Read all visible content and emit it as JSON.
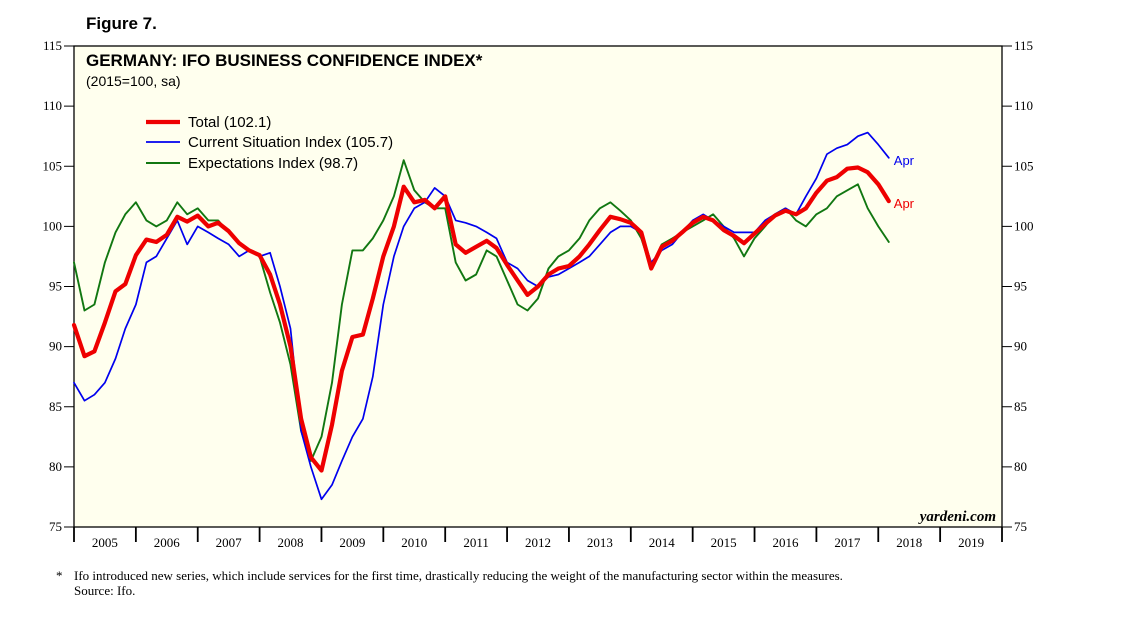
{
  "figure_label": "Figure 7.",
  "footnote": "Ifo introduced new series, which include services for the first time, drastically reducing the weight of the manufacturing sector within the measures.",
  "source": "Source: Ifo.",
  "colors": {
    "plot_bg": "#ffffee",
    "total": "#ee0000",
    "current": "#0000ee",
    "expectations": "#117711"
  },
  "chart_data": {
    "type": "line",
    "title": "GERMANY: IFO BUSINESS CONFIDENCE INDEX*",
    "subtitle": "(2015=100, sa)",
    "watermark": "yardeni.com",
    "ylim": [
      75,
      115
    ],
    "yticks": [
      75,
      80,
      85,
      90,
      95,
      100,
      105,
      110,
      115
    ],
    "xlim": [
      2005.0,
      2020.0
    ],
    "xtick_labels": [
      "2005",
      "2006",
      "2007",
      "2008",
      "2009",
      "2010",
      "2011",
      "2012",
      "2013",
      "2014",
      "2015",
      "2016",
      "2017",
      "2018",
      "2019"
    ],
    "grid": false,
    "legend_position": "top-left",
    "series": [
      {
        "name": "Total (102.1)",
        "color": "#ee0000",
        "end_label": "Apr",
        "points": [
          [
            2005.0,
            91.8
          ],
          [
            2005.17,
            89.2
          ],
          [
            2005.33,
            89.6
          ],
          [
            2005.5,
            92.0
          ],
          [
            2005.67,
            94.6
          ],
          [
            2005.83,
            95.2
          ],
          [
            2006.0,
            97.6
          ],
          [
            2006.17,
            98.9
          ],
          [
            2006.33,
            98.7
          ],
          [
            2006.5,
            99.3
          ],
          [
            2006.67,
            100.8
          ],
          [
            2006.83,
            100.4
          ],
          [
            2007.0,
            100.9
          ],
          [
            2007.17,
            100.0
          ],
          [
            2007.33,
            100.3
          ],
          [
            2007.5,
            99.6
          ],
          [
            2007.67,
            98.6
          ],
          [
            2007.83,
            98.0
          ],
          [
            2008.0,
            97.6
          ],
          [
            2008.17,
            96.0
          ],
          [
            2008.33,
            93.5
          ],
          [
            2008.5,
            90.0
          ],
          [
            2008.67,
            84.0
          ],
          [
            2008.83,
            80.8
          ],
          [
            2009.0,
            79.7
          ],
          [
            2009.17,
            83.5
          ],
          [
            2009.33,
            88.0
          ],
          [
            2009.5,
            90.8
          ],
          [
            2009.67,
            91.0
          ],
          [
            2009.83,
            94.0
          ],
          [
            2010.0,
            97.5
          ],
          [
            2010.17,
            100.0
          ],
          [
            2010.33,
            103.3
          ],
          [
            2010.5,
            102.0
          ],
          [
            2010.67,
            102.2
          ],
          [
            2010.83,
            101.5
          ],
          [
            2011.0,
            102.5
          ],
          [
            2011.17,
            98.5
          ],
          [
            2011.33,
            97.8
          ],
          [
            2011.5,
            98.3
          ],
          [
            2011.67,
            98.8
          ],
          [
            2011.83,
            98.2
          ],
          [
            2012.0,
            96.8
          ],
          [
            2012.17,
            95.5
          ],
          [
            2012.33,
            94.3
          ],
          [
            2012.5,
            95.0
          ],
          [
            2012.67,
            96.0
          ],
          [
            2012.83,
            96.5
          ],
          [
            2013.0,
            96.7
          ],
          [
            2013.17,
            97.5
          ],
          [
            2013.33,
            98.5
          ],
          [
            2013.5,
            99.7
          ],
          [
            2013.67,
            100.8
          ],
          [
            2013.83,
            100.6
          ],
          [
            2014.0,
            100.3
          ],
          [
            2014.17,
            99.5
          ],
          [
            2014.33,
            96.5
          ],
          [
            2014.5,
            98.3
          ],
          [
            2014.67,
            98.8
          ],
          [
            2014.83,
            99.5
          ],
          [
            2015.0,
            100.3
          ],
          [
            2015.17,
            100.8
          ],
          [
            2015.33,
            100.5
          ],
          [
            2015.5,
            99.7
          ],
          [
            2015.67,
            99.2
          ],
          [
            2015.83,
            98.6
          ],
          [
            2016.0,
            99.4
          ],
          [
            2016.17,
            100.2
          ],
          [
            2016.33,
            100.9
          ],
          [
            2016.5,
            101.3
          ],
          [
            2016.67,
            101.0
          ],
          [
            2016.83,
            101.5
          ],
          [
            2017.0,
            102.8
          ],
          [
            2017.17,
            103.8
          ],
          [
            2017.33,
            104.1
          ],
          [
            2017.5,
            104.8
          ],
          [
            2017.67,
            104.9
          ],
          [
            2017.83,
            104.5
          ],
          [
            2018.0,
            103.5
          ],
          [
            2018.17,
            102.1
          ]
        ]
      },
      {
        "name": "Current Situation Index (105.7)",
        "color": "#0000ee",
        "end_label": "Apr",
        "points": [
          [
            2005.0,
            87.0
          ],
          [
            2005.17,
            85.5
          ],
          [
            2005.33,
            86.0
          ],
          [
            2005.5,
            87.0
          ],
          [
            2005.67,
            89.0
          ],
          [
            2005.83,
            91.5
          ],
          [
            2006.0,
            93.5
          ],
          [
            2006.17,
            97.0
          ],
          [
            2006.33,
            97.5
          ],
          [
            2006.5,
            99.0
          ],
          [
            2006.67,
            100.5
          ],
          [
            2006.83,
            98.5
          ],
          [
            2007.0,
            100.0
          ],
          [
            2007.17,
            99.5
          ],
          [
            2007.33,
            99.0
          ],
          [
            2007.5,
            98.5
          ],
          [
            2007.67,
            97.5
          ],
          [
            2007.83,
            98.0
          ],
          [
            2008.0,
            97.5
          ],
          [
            2008.17,
            97.8
          ],
          [
            2008.33,
            95.0
          ],
          [
            2008.5,
            91.5
          ],
          [
            2008.67,
            83.0
          ],
          [
            2008.83,
            80.0
          ],
          [
            2009.0,
            77.3
          ],
          [
            2009.17,
            78.5
          ],
          [
            2009.33,
            80.5
          ],
          [
            2009.5,
            82.5
          ],
          [
            2009.67,
            84.0
          ],
          [
            2009.83,
            87.5
          ],
          [
            2010.0,
            93.5
          ],
          [
            2010.17,
            97.5
          ],
          [
            2010.33,
            100.0
          ],
          [
            2010.5,
            101.5
          ],
          [
            2010.67,
            102.0
          ],
          [
            2010.83,
            103.2
          ],
          [
            2011.0,
            102.5
          ],
          [
            2011.17,
            100.5
          ],
          [
            2011.33,
            100.3
          ],
          [
            2011.5,
            100.0
          ],
          [
            2011.67,
            99.5
          ],
          [
            2011.83,
            99.0
          ],
          [
            2012.0,
            97.0
          ],
          [
            2012.17,
            96.5
          ],
          [
            2012.33,
            95.5
          ],
          [
            2012.5,
            95.0
          ],
          [
            2012.67,
            95.8
          ],
          [
            2012.83,
            96.0
          ],
          [
            2013.0,
            96.5
          ],
          [
            2013.17,
            97.0
          ],
          [
            2013.33,
            97.5
          ],
          [
            2013.5,
            98.5
          ],
          [
            2013.67,
            99.5
          ],
          [
            2013.83,
            100.0
          ],
          [
            2014.0,
            100.0
          ],
          [
            2014.17,
            99.5
          ],
          [
            2014.33,
            97.0
          ],
          [
            2014.5,
            98.0
          ],
          [
            2014.67,
            98.5
          ],
          [
            2014.83,
            99.5
          ],
          [
            2015.0,
            100.5
          ],
          [
            2015.17,
            101.0
          ],
          [
            2015.33,
            100.5
          ],
          [
            2015.5,
            100.0
          ],
          [
            2015.67,
            99.5
          ],
          [
            2015.83,
            99.5
          ],
          [
            2016.0,
            99.5
          ],
          [
            2016.17,
            100.5
          ],
          [
            2016.33,
            101.0
          ],
          [
            2016.5,
            101.5
          ],
          [
            2016.67,
            101.0
          ],
          [
            2016.83,
            102.5
          ],
          [
            2017.0,
            104.0
          ],
          [
            2017.17,
            106.0
          ],
          [
            2017.33,
            106.5
          ],
          [
            2017.5,
            106.8
          ],
          [
            2017.67,
            107.5
          ],
          [
            2017.83,
            107.8
          ],
          [
            2018.0,
            106.8
          ],
          [
            2018.17,
            105.7
          ]
        ]
      },
      {
        "name": "Expectations Index (98.7)",
        "color": "#117711",
        "end_label": "",
        "points": [
          [
            2005.0,
            97.0
          ],
          [
            2005.17,
            93.0
          ],
          [
            2005.33,
            93.5
          ],
          [
            2005.5,
            97.0
          ],
          [
            2005.67,
            99.5
          ],
          [
            2005.83,
            101.0
          ],
          [
            2006.0,
            102.0
          ],
          [
            2006.17,
            100.5
          ],
          [
            2006.33,
            100.0
          ],
          [
            2006.5,
            100.5
          ],
          [
            2006.67,
            102.0
          ],
          [
            2006.83,
            101.0
          ],
          [
            2007.0,
            101.5
          ],
          [
            2007.17,
            100.5
          ],
          [
            2007.33,
            100.5
          ],
          [
            2007.5,
            99.5
          ],
          [
            2007.67,
            98.5
          ],
          [
            2007.83,
            98.0
          ],
          [
            2008.0,
            97.5
          ],
          [
            2008.17,
            94.5
          ],
          [
            2008.33,
            92.0
          ],
          [
            2008.5,
            88.5
          ],
          [
            2008.67,
            83.0
          ],
          [
            2008.83,
            80.5
          ],
          [
            2009.0,
            82.5
          ],
          [
            2009.17,
            87.0
          ],
          [
            2009.33,
            93.5
          ],
          [
            2009.5,
            98.0
          ],
          [
            2009.67,
            98.0
          ],
          [
            2009.83,
            99.0
          ],
          [
            2010.0,
            100.5
          ],
          [
            2010.17,
            102.5
          ],
          [
            2010.33,
            105.5
          ],
          [
            2010.5,
            103.0
          ],
          [
            2010.67,
            102.0
          ],
          [
            2010.83,
            101.5
          ],
          [
            2011.0,
            101.5
          ],
          [
            2011.17,
            97.0
          ],
          [
            2011.33,
            95.5
          ],
          [
            2011.5,
            96.0
          ],
          [
            2011.67,
            98.0
          ],
          [
            2011.83,
            97.5
          ],
          [
            2012.0,
            95.5
          ],
          [
            2012.17,
            93.5
          ],
          [
            2012.33,
            93.0
          ],
          [
            2012.5,
            94.0
          ],
          [
            2012.67,
            96.5
          ],
          [
            2012.83,
            97.5
          ],
          [
            2013.0,
            98.0
          ],
          [
            2013.17,
            99.0
          ],
          [
            2013.33,
            100.5
          ],
          [
            2013.5,
            101.5
          ],
          [
            2013.67,
            102.0
          ],
          [
            2013.83,
            101.3
          ],
          [
            2014.0,
            100.5
          ],
          [
            2014.17,
            99.0
          ],
          [
            2014.33,
            96.5
          ],
          [
            2014.5,
            98.5
          ],
          [
            2014.67,
            99.0
          ],
          [
            2014.83,
            99.5
          ],
          [
            2015.0,
            100.0
          ],
          [
            2015.17,
            100.5
          ],
          [
            2015.33,
            101.0
          ],
          [
            2015.5,
            100.0
          ],
          [
            2015.67,
            99.0
          ],
          [
            2015.83,
            97.5
          ],
          [
            2016.0,
            99.0
          ],
          [
            2016.17,
            100.0
          ],
          [
            2016.33,
            101.0
          ],
          [
            2016.5,
            101.5
          ],
          [
            2016.67,
            100.5
          ],
          [
            2016.83,
            100.0
          ],
          [
            2017.0,
            101.0
          ],
          [
            2017.17,
            101.5
          ],
          [
            2017.33,
            102.5
          ],
          [
            2017.5,
            103.0
          ],
          [
            2017.67,
            103.5
          ],
          [
            2017.83,
            101.5
          ],
          [
            2018.0,
            100.0
          ],
          [
            2018.17,
            98.7
          ]
        ]
      }
    ]
  }
}
